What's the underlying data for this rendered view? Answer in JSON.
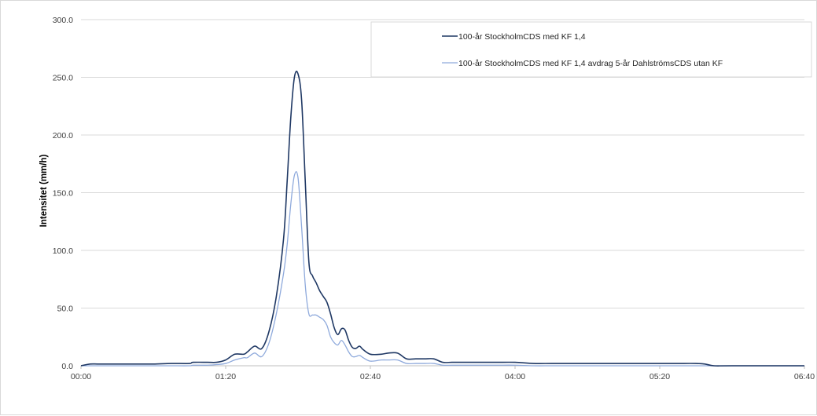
{
  "chart_data": {
    "type": "line",
    "title": "",
    "xlabel": "",
    "ylabel": "Intensitet (mm/h)",
    "x_unit": "minutes",
    "x_ticks": [
      "00:00",
      "01:20",
      "02:40",
      "04:00",
      "05:20",
      "06:40"
    ],
    "y_ticks": [
      "0.0",
      "50.0",
      "100.0",
      "150.0",
      "200.0",
      "250.0",
      "300.0"
    ],
    "xlim": [
      0,
      400
    ],
    "ylim": [
      0,
      300
    ],
    "grid": "horizontal",
    "legend_position": "top-right",
    "series": [
      {
        "name": "100-år StockholmCDS med KF 1,4",
        "color": "#1f3864",
        "x": [
          0,
          5,
          10,
          20,
          30,
          40,
          50,
          60,
          62,
          70,
          75,
          80,
          85,
          90,
          92,
          96,
          100,
          104,
          108,
          112,
          114,
          116,
          118,
          120,
          122,
          124,
          126,
          128,
          130,
          132,
          134,
          136,
          138,
          140,
          142,
          144,
          146,
          148,
          150,
          152,
          154,
          156,
          160,
          166,
          170,
          175,
          180,
          185,
          190,
          195,
          200,
          205,
          210,
          216,
          220,
          230,
          240,
          250,
          260,
          270,
          280,
          290,
          300,
          310,
          320,
          330,
          340,
          345,
          350,
          360,
          400
        ],
        "y": [
          0,
          1.5,
          1.5,
          1.5,
          1.5,
          1.5,
          2,
          2,
          3,
          3,
          3,
          5,
          10,
          10,
          12,
          17,
          15,
          30,
          60,
          110,
          160,
          215,
          250,
          253,
          230,
          160,
          90,
          78,
          72,
          65,
          60,
          55,
          45,
          33,
          27,
          32,
          31,
          22,
          16,
          15,
          17,
          14,
          10,
          10,
          11,
          11,
          6,
          6,
          6,
          6,
          3,
          3,
          3,
          3,
          3,
          3,
          3,
          2,
          2,
          2,
          2,
          2,
          2,
          2,
          2,
          2,
          2,
          1.5,
          0,
          0,
          0
        ]
      },
      {
        "name": "100-år StockholmCDS med KF 1,4 avdrag 5-år DahlströmsCDS utan KF",
        "color": "#8faadc",
        "x": [
          0,
          5,
          10,
          20,
          30,
          40,
          50,
          60,
          62,
          70,
          75,
          80,
          85,
          90,
          92,
          96,
          100,
          104,
          108,
          112,
          114,
          116,
          118,
          120,
          122,
          124,
          126,
          128,
          130,
          132,
          134,
          136,
          138,
          140,
          142,
          144,
          146,
          148,
          150,
          152,
          154,
          156,
          160,
          166,
          170,
          175,
          180,
          185,
          190,
          195,
          200,
          205,
          210,
          216,
          220,
          230,
          240,
          250,
          260,
          270,
          280,
          290,
          300,
          310,
          320,
          330,
          340,
          345,
          350,
          360,
          400
        ],
        "y": [
          0,
          0,
          0,
          0,
          0,
          0,
          0,
          0,
          0.5,
          0.5,
          1,
          2,
          5,
          7,
          7,
          11,
          8,
          20,
          45,
          80,
          105,
          140,
          165,
          163,
          120,
          70,
          45,
          44,
          44,
          42,
          40,
          35,
          25,
          20,
          18,
          22,
          18,
          12,
          8,
          8,
          9,
          7,
          4,
          5,
          5,
          5,
          2,
          2,
          2,
          2,
          0.5,
          0.5,
          0.5,
          0.5,
          0.5,
          0.5,
          0.5,
          0,
          0,
          0,
          0,
          0,
          0,
          0,
          0,
          0,
          0,
          0,
          0,
          0,
          0
        ]
      }
    ]
  }
}
